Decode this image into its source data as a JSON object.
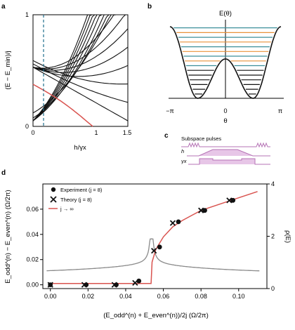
{
  "panels": {
    "a": {
      "label": "a",
      "ylabel": "(E − E_min)/j",
      "xlabel": "h/γx",
      "xticks": [
        "0",
        "1",
        "1.5"
      ],
      "yticks": [
        "0",
        "1"
      ],
      "colors": {
        "levels": "#111111",
        "ground_track": "#d9534f",
        "marker": "#1f6e8c"
      }
    },
    "b": {
      "label": "b",
      "title": "E(θ)",
      "xlabel": "θ",
      "xticks": [
        "−π",
        "0",
        "π"
      ],
      "colors": {
        "well": "#111111",
        "teal": "#3b8f9a",
        "orange": "#e8923a"
      }
    },
    "c": {
      "label": "c",
      "title": "Subspace pulses",
      "rows": [
        "h",
        "γx"
      ],
      "colors": {
        "pulse": "#b573b5",
        "fill": "#e7c6e7"
      }
    },
    "d": {
      "label": "d",
      "ylabel_left": "E_odd^(n) − E_even^(n)   (Ω/2π)",
      "ylabel_right": "ρ(E)",
      "xlabel": "(E_odd^(n) + E_even^(n))/2j   (Ω/2π)",
      "xticks": [
        "0.00",
        "0.02",
        "0.04",
        "0.06",
        "0.08",
        "0.10"
      ],
      "yticks_left": [
        "0.00",
        "0.02",
        "0.04",
        "0.06"
      ],
      "yticks_right": [
        "0",
        "2",
        "4"
      ],
      "legend": [
        {
          "label": "Experiment (j = 8)",
          "marker": "circle"
        },
        {
          "label": "Theory (j = 8)",
          "marker": "cross"
        },
        {
          "label": "j → ∞",
          "marker": "line"
        }
      ],
      "colors": {
        "theory_line": "#d9534f",
        "density": "#8a8a8a",
        "points": "#111111"
      }
    }
  },
  "chart_data": [
    {
      "type": "line",
      "panel": "d",
      "xlim": [
        -0.004,
        0.115
      ],
      "ylim": [
        -0.003,
        0.08
      ],
      "series": [
        {
          "name": "Experiment (j = 8)",
          "x": [
            0.0,
            0.019,
            0.035,
            0.047,
            0.058,
            0.068,
            0.082,
            0.097
          ],
          "y": [
            0.0,
            0.0,
            0.0,
            0.003,
            0.03,
            0.05,
            0.059,
            0.067
          ]
        },
        {
          "name": "Theory (j = 8)",
          "x": [
            0.0,
            0.018,
            0.034,
            0.045,
            0.055,
            0.065,
            0.08,
            0.095
          ],
          "y": [
            0.0,
            0.0,
            0.0,
            0.0015,
            0.027,
            0.049,
            0.059,
            0.067
          ]
        },
        {
          "name": "j → ∞",
          "x": [
            0.0,
            0.04,
            0.0535,
            0.054,
            0.056,
            0.06,
            0.065,
            0.07,
            0.075,
            0.08,
            0.09,
            0.1,
            0.11
          ],
          "y": [
            0.001,
            0.001,
            0.001,
            0.018,
            0.028,
            0.038,
            0.046,
            0.051,
            0.055,
            0.059,
            0.064,
            0.069,
            0.074
          ]
        }
      ]
    }
  ]
}
